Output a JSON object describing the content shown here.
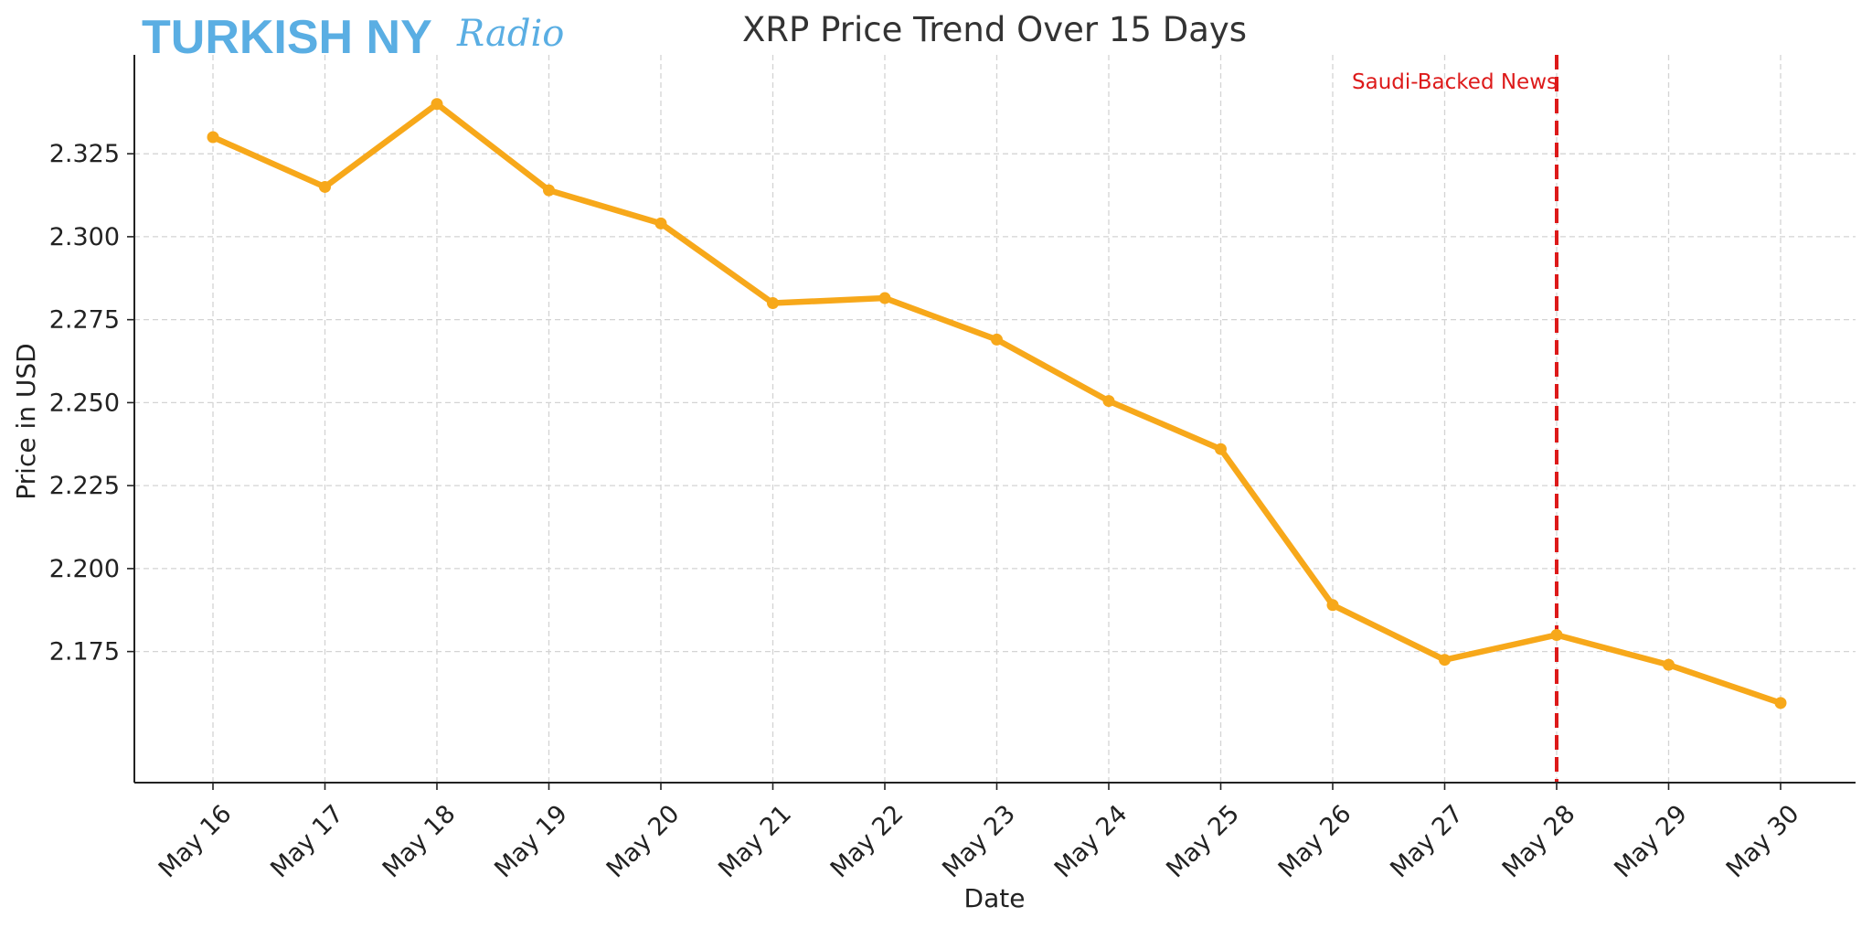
{
  "logo": {
    "main": "TURKISH NY",
    "script": "Radio"
  },
  "chart_data": {
    "type": "line",
    "title": "XRP Price Trend Over 15 Days",
    "xlabel": "Date",
    "ylabel": "Price in USD",
    "categories": [
      "May 16",
      "May 17",
      "May 18",
      "May 19",
      "May 20",
      "May 21",
      "May 22",
      "May 23",
      "May 24",
      "May 25",
      "May 26",
      "May 27",
      "May 28",
      "May 29",
      "May 30"
    ],
    "series": [
      {
        "values": [
          2.33,
          2.315,
          2.34,
          2.314,
          2.304,
          2.28,
          2.2815,
          2.269,
          2.2505,
          2.236,
          2.189,
          2.1725,
          2.18,
          2.171,
          2.1595
        ],
        "color": "#f7a81a"
      }
    ],
    "ylim": [
      2.1355,
      2.3548
    ],
    "yticks": [
      "2.175",
      "2.200",
      "2.225",
      "2.250",
      "2.275",
      "2.300",
      "2.325"
    ],
    "grid": true,
    "annotations": [
      {
        "type": "vline",
        "x": "May 28",
        "label": "Saudi-Backed News",
        "color": "#dd1a1a"
      }
    ]
  }
}
